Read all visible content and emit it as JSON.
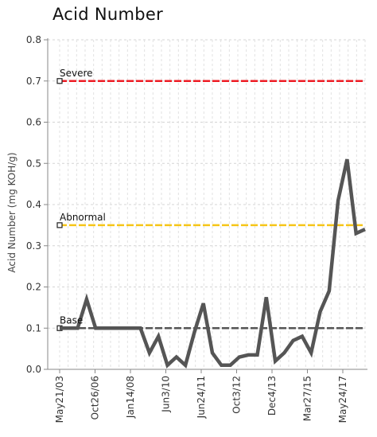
{
  "chart_data": {
    "type": "line",
    "title": "Acid Number",
    "ylabel": "Acid Number (mg KOH/g)",
    "xlabel": "",
    "ylim": [
      0,
      0.8
    ],
    "yticks": [
      "0.0",
      "0.1",
      "0.2",
      "0.3",
      "0.4",
      "0.5",
      "0.6",
      "0.7",
      "0.8"
    ],
    "xticks": [
      "May21/03",
      "Oct26/06",
      "Jan14/08",
      "Jun3/10",
      "Jun24/11",
      "Oct3/12",
      "Dec4/13",
      "Mar27/15",
      "May24/17"
    ],
    "grid": true,
    "thresholds": [
      {
        "name": "Severe",
        "value": 0.7,
        "color": "#ee1c24"
      },
      {
        "name": "Abnormal",
        "value": 0.35,
        "color": "#f5c518"
      },
      {
        "name": "Base",
        "value": 0.1,
        "color": "#555555"
      }
    ],
    "series": [
      {
        "color": "#555555",
        "values": [
          0.1,
          0.1,
          0.1,
          0.17,
          0.1,
          0.1,
          0.1,
          0.1,
          0.1,
          0.1,
          0.04,
          0.08,
          0.01,
          0.03,
          0.01,
          0.09,
          0.16,
          0.04,
          0.01,
          0.01,
          0.03,
          0.035,
          0.035,
          0.175,
          0.02,
          0.04,
          0.07,
          0.08,
          0.04,
          0.14,
          0.19,
          0.41,
          0.51,
          0.33,
          0.34
        ]
      }
    ]
  }
}
